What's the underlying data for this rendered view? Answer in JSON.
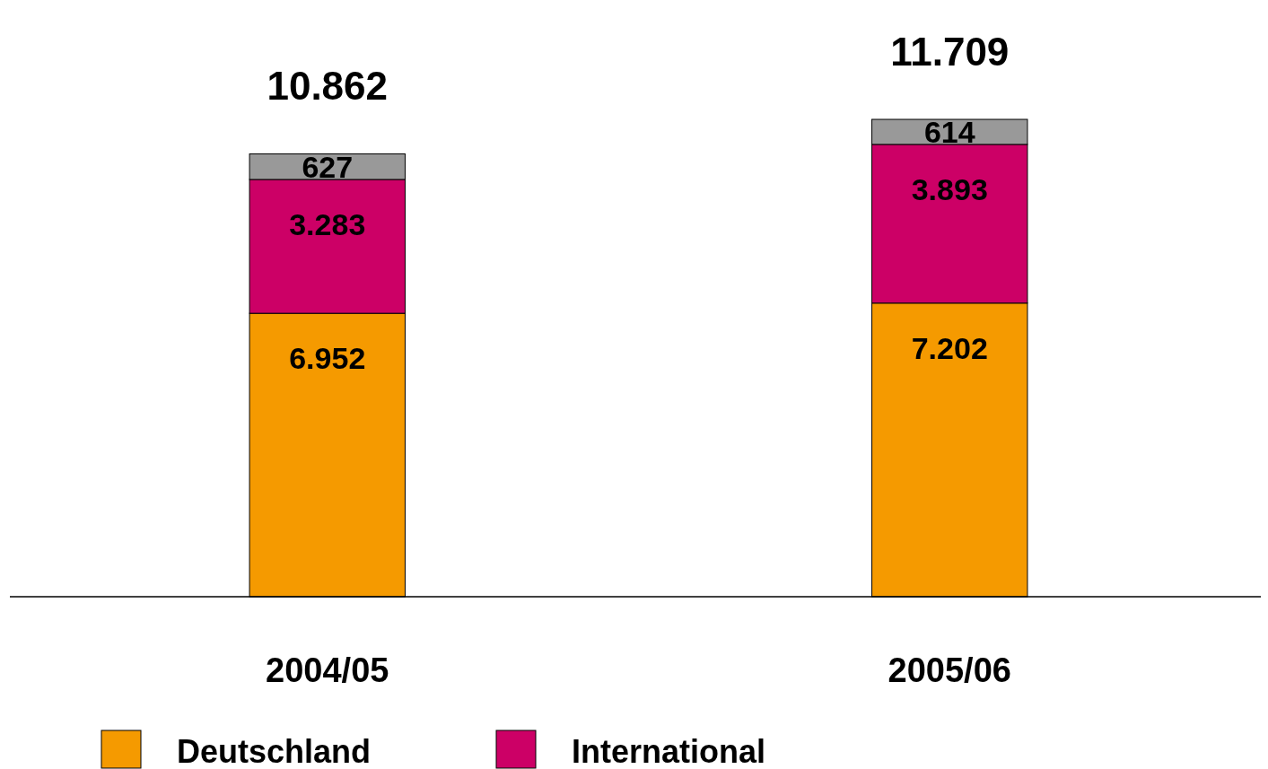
{
  "chart_data": {
    "type": "bar",
    "stacked": true,
    "categories": [
      "2004/05",
      "2005/06"
    ],
    "series": [
      {
        "name": "Deutschland",
        "color": "#f59a00",
        "values": [
          6952,
          7202
        ],
        "value_labels": [
          "6.952",
          "7.202"
        ]
      },
      {
        "name": "International",
        "color": "#cc0066",
        "values": [
          3283,
          3893
        ],
        "value_labels": [
          "3.283",
          "3.893"
        ]
      },
      {
        "color": "#999999",
        "values": [
          627,
          614
        ],
        "value_labels": [
          "627",
          "614"
        ]
      }
    ],
    "totals": [
      "10.862",
      "11.709"
    ],
    "legend": "bottom"
  }
}
